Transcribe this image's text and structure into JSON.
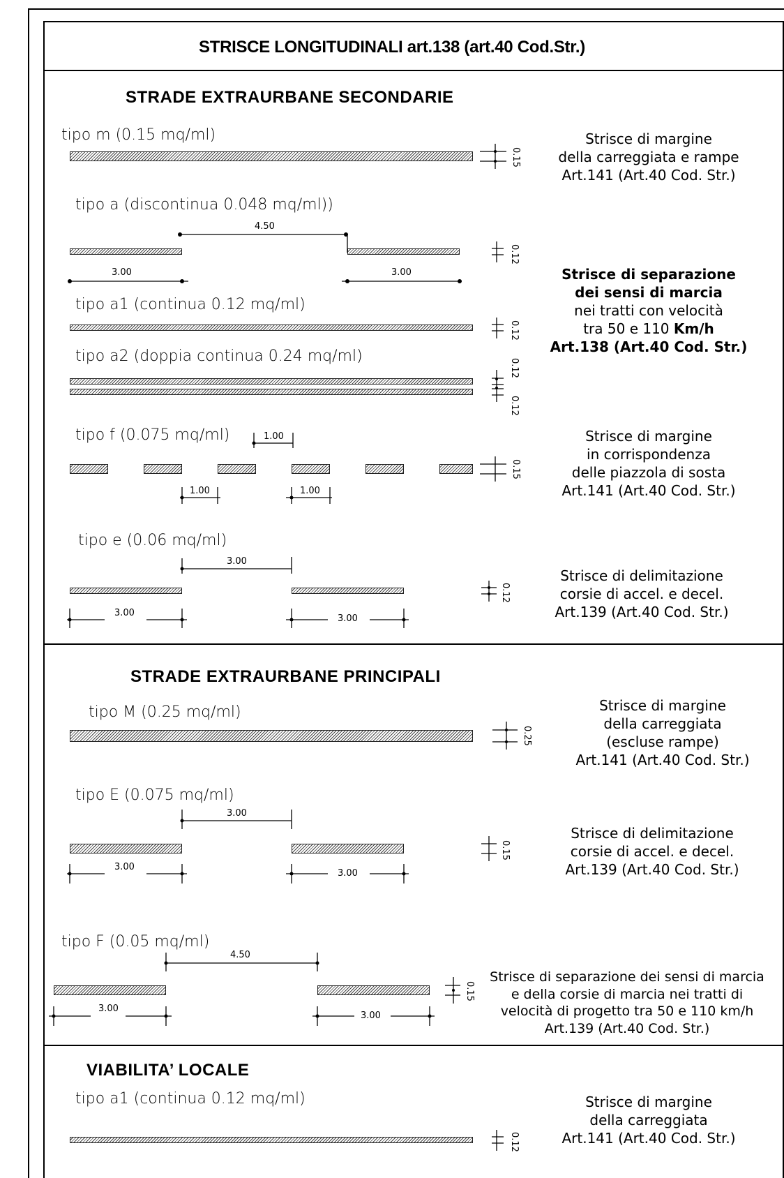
{
  "header": {
    "title": "STRISCE LONGITUDINALI art.138 (art.40 Cod.Str.)"
  },
  "sections": [
    {
      "heading": "STRADE EXTRAURBANE SECONDARIE"
    },
    {
      "heading": "STRADE EXTRAURBANE PRINCIPALI"
    },
    {
      "heading": "VIABILITA’ LOCALE"
    }
  ],
  "types": {
    "m": "tipo m (0.15 mq/ml)",
    "a": "tipo a (discontinua 0.048 mq/ml))",
    "a1": "tipo a1 (continua 0.12 mq/ml)",
    "a2": "tipo a2 (doppia continua 0.24 mq/ml)",
    "f": "tipo f (0.075 mq/ml)",
    "e": "tipo e (0.06 mq/ml)",
    "M": "tipo M (0.25 mq/ml)",
    "E": "tipo E (0.075 mq/ml)",
    "F": "tipo F (0.05 mq/ml)",
    "la1": "tipo a1 (continua 0.12 mq/ml)"
  },
  "dims": {
    "d450": "4.50",
    "d300": "3.00",
    "d100": "1.00",
    "w015": "0.15",
    "w012": "0.12",
    "w025": "0.25"
  },
  "descriptions": {
    "margin_sec": [
      "Strisce di margine",
      "della carreggiata e rampe",
      "Art.141 (Art.40 Cod. Str.)"
    ],
    "sep_sec": {
      "l1": "Strisce di separazione",
      "l2": "dei sensi di marcia",
      "l3": "nei tratti con velocità",
      "l4a": "tra 50 e 110 ",
      "l4b": "Km/h",
      "l5": "Art.138 (Art.40 Cod. Str.)"
    },
    "margin_piazzola": [
      "Strisce di margine",
      "in corrispondenza",
      "delle piazzola di sosta",
      "Art.141 (Art.40 Cod. Str.)"
    ],
    "delim_sec": [
      "Strisce di delimitazione",
      "corsie di accel. e decel.",
      "Art.139 (Art.40 Cod. Str.)"
    ],
    "margin_pri": [
      "Strisce di margine",
      "della carreggiata",
      "(escluse rampe)",
      "Art.141 (Art.40 Cod. Str.)"
    ],
    "delim_pri": [
      "Strisce di delimitazione",
      "corsie di accel. e decel.",
      "Art.139 (Art.40 Cod. Str.)"
    ],
    "sep_pri": [
      "Strisce di separazione dei sensi di marcia",
      "e della corsie di marcia nei tratti di",
      "velocità di progetto tra 50 e 110 km/h",
      "Art.139 (Art.40 Cod. Str.)"
    ],
    "margin_loc": [
      "Strisce di margine",
      "della carreggiata",
      "Art.141 (Art.40 Cod. Str.)"
    ]
  }
}
